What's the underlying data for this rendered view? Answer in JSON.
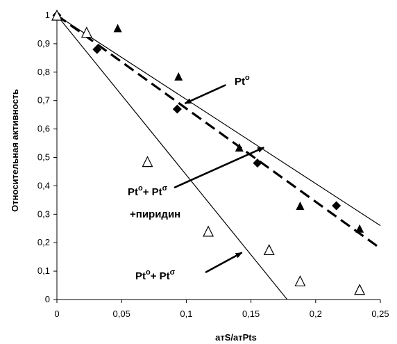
{
  "chart_data": {
    "type": "scatter",
    "title": "",
    "xlabel": "атS/атPts",
    "ylabel": "Относительная активность",
    "xlim": [
      0,
      0.25
    ],
    "ylim": [
      0,
      1
    ],
    "x_ticks": [
      "0",
      "0,05",
      "0,1",
      "0,15",
      "0,2",
      "0,25"
    ],
    "y_ticks": [
      "0",
      "0,1",
      "0,2",
      "0,3",
      "0,4",
      "0,5",
      "0,6",
      "0,7",
      "0,8",
      "0,9",
      "1"
    ],
    "grid": false,
    "legend": "none",
    "series": [
      {
        "marker": "diamond-filled",
        "points": [
          [
            0,
            1
          ],
          [
            0.031,
            0.88
          ],
          [
            0.093,
            0.67
          ],
          [
            0.155,
            0.48
          ],
          [
            0.216,
            0.33
          ]
        ]
      },
      {
        "marker": "triangle-filled",
        "points": [
          [
            0,
            1
          ],
          [
            0.047,
            0.955
          ],
          [
            0.094,
            0.785
          ],
          [
            0.141,
            0.535
          ],
          [
            0.188,
            0.33
          ],
          [
            0.234,
            0.25
          ]
        ]
      },
      {
        "marker": "triangle-open",
        "points": [
          [
            0,
            1
          ],
          [
            0.023,
            0.94
          ],
          [
            0.07,
            0.485
          ],
          [
            0.117,
            0.24
          ],
          [
            0.164,
            0.175
          ],
          [
            0.188,
            0.065
          ],
          [
            0.234,
            0.035
          ]
        ]
      }
    ],
    "lines": [
      {
        "style": "solid-thin",
        "from": [
          0,
          1
        ],
        "to": [
          0.25,
          0.26
        ]
      },
      {
        "style": "dashed-thick",
        "from": [
          0,
          1
        ],
        "to": [
          0.25,
          0.18
        ]
      },
      {
        "style": "solid-thin",
        "from": [
          0,
          1
        ],
        "to": [
          0.178,
          0
        ]
      }
    ],
    "annotations": [
      {
        "text": "Pt",
        "sup": "o",
        "arrow_from": [
          0.13,
          0.75
        ],
        "arrow_to": [
          0.099,
          0.69
        ]
      },
      {
        "lines": [
          [
            "Pt",
            "o",
            "+ Pt",
            "σ"
          ],
          [
            "+пиридин",
            "",
            "",
            ""
          ]
        ],
        "arrow_from": [
          0.095,
          0.39
        ],
        "arrow_to": [
          0.16,
          0.54
        ]
      },
      {
        "lines": [
          [
            "Pt",
            "o",
            "+ Pt",
            "σ"
          ]
        ],
        "arrow_from": [
          0.13,
          0.1
        ],
        "arrow_to": [
          0.143,
          0.165
        ]
      }
    ]
  }
}
